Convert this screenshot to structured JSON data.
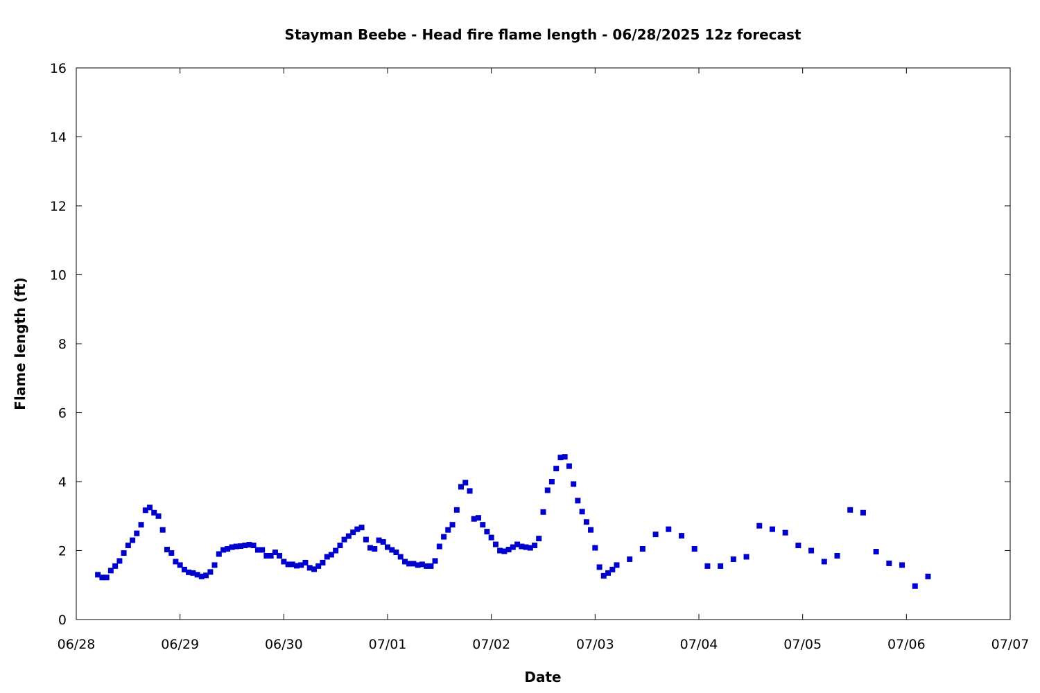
{
  "chart_data": {
    "type": "scatter",
    "title": "Stayman Beebe - Head fire flame length - 06/28/2025 12z forecast",
    "xlabel": "Date",
    "ylabel": "Flame length (ft)",
    "x_unit": "days since 06/28 00:00",
    "xlim": [
      0,
      9
    ],
    "ylim": [
      0,
      16
    ],
    "x_ticks": [
      "06/28",
      "06/29",
      "06/30",
      "07/01",
      "07/02",
      "07/03",
      "07/04",
      "07/05",
      "07/06",
      "07/07"
    ],
    "y_ticks": [
      "0",
      "2",
      "4",
      "6",
      "8",
      "10",
      "12",
      "14",
      "16"
    ],
    "grid": false,
    "legend": "none",
    "marker_color": "#0000cc",
    "series": [
      {
        "points": [
          [
            0.208,
            1.3
          ],
          [
            0.25,
            1.22
          ],
          [
            0.292,
            1.22
          ],
          [
            0.333,
            1.42
          ],
          [
            0.375,
            1.55
          ],
          [
            0.417,
            1.7
          ],
          [
            0.458,
            1.93
          ],
          [
            0.5,
            2.15
          ],
          [
            0.542,
            2.3
          ],
          [
            0.583,
            2.5
          ],
          [
            0.625,
            2.75
          ],
          [
            0.667,
            3.17
          ],
          [
            0.708,
            3.25
          ],
          [
            0.75,
            3.1
          ],
          [
            0.792,
            3.0
          ],
          [
            0.833,
            2.6
          ],
          [
            0.875,
            2.03
          ],
          [
            0.917,
            1.93
          ],
          [
            0.958,
            1.68
          ],
          [
            1.0,
            1.58
          ],
          [
            1.042,
            1.45
          ],
          [
            1.083,
            1.37
          ],
          [
            1.125,
            1.35
          ],
          [
            1.167,
            1.3
          ],
          [
            1.208,
            1.25
          ],
          [
            1.25,
            1.28
          ],
          [
            1.292,
            1.38
          ],
          [
            1.333,
            1.58
          ],
          [
            1.375,
            1.9
          ],
          [
            1.417,
            2.02
          ],
          [
            1.458,
            2.05
          ],
          [
            1.5,
            2.1
          ],
          [
            1.542,
            2.12
          ],
          [
            1.583,
            2.13
          ],
          [
            1.625,
            2.15
          ],
          [
            1.667,
            2.17
          ],
          [
            1.708,
            2.15
          ],
          [
            1.75,
            2.02
          ],
          [
            1.792,
            2.02
          ],
          [
            1.833,
            1.85
          ],
          [
            1.875,
            1.85
          ],
          [
            1.917,
            1.95
          ],
          [
            1.958,
            1.85
          ],
          [
            2.0,
            1.68
          ],
          [
            2.042,
            1.6
          ],
          [
            2.083,
            1.6
          ],
          [
            2.125,
            1.56
          ],
          [
            2.167,
            1.58
          ],
          [
            2.208,
            1.65
          ],
          [
            2.25,
            1.5
          ],
          [
            2.292,
            1.46
          ],
          [
            2.333,
            1.55
          ],
          [
            2.375,
            1.65
          ],
          [
            2.417,
            1.82
          ],
          [
            2.458,
            1.88
          ],
          [
            2.5,
            2.0
          ],
          [
            2.542,
            2.15
          ],
          [
            2.583,
            2.32
          ],
          [
            2.625,
            2.42
          ],
          [
            2.667,
            2.53
          ],
          [
            2.708,
            2.62
          ],
          [
            2.75,
            2.67
          ],
          [
            2.792,
            2.32
          ],
          [
            2.833,
            2.08
          ],
          [
            2.875,
            2.05
          ],
          [
            2.917,
            2.3
          ],
          [
            2.958,
            2.25
          ],
          [
            3.0,
            2.1
          ],
          [
            3.042,
            2.02
          ],
          [
            3.083,
            1.95
          ],
          [
            3.125,
            1.82
          ],
          [
            3.167,
            1.68
          ],
          [
            3.208,
            1.62
          ],
          [
            3.25,
            1.62
          ],
          [
            3.292,
            1.58
          ],
          [
            3.333,
            1.6
          ],
          [
            3.375,
            1.55
          ],
          [
            3.417,
            1.55
          ],
          [
            3.458,
            1.7
          ],
          [
            3.5,
            2.12
          ],
          [
            3.542,
            2.4
          ],
          [
            3.583,
            2.6
          ],
          [
            3.625,
            2.75
          ],
          [
            3.667,
            3.18
          ],
          [
            3.708,
            3.85
          ],
          [
            3.75,
            3.97
          ],
          [
            3.792,
            3.73
          ],
          [
            3.833,
            2.92
          ],
          [
            3.875,
            2.95
          ],
          [
            3.917,
            2.75
          ],
          [
            3.958,
            2.55
          ],
          [
            4.0,
            2.38
          ],
          [
            4.042,
            2.18
          ],
          [
            4.083,
            2.0
          ],
          [
            4.125,
            1.98
          ],
          [
            4.167,
            2.03
          ],
          [
            4.208,
            2.1
          ],
          [
            4.25,
            2.18
          ],
          [
            4.292,
            2.12
          ],
          [
            4.333,
            2.1
          ],
          [
            4.375,
            2.08
          ],
          [
            4.417,
            2.15
          ],
          [
            4.458,
            2.35
          ],
          [
            4.5,
            3.12
          ],
          [
            4.542,
            3.75
          ],
          [
            4.583,
            4.0
          ],
          [
            4.625,
            4.38
          ],
          [
            4.667,
            4.7
          ],
          [
            4.708,
            4.72
          ],
          [
            4.75,
            4.45
          ],
          [
            4.792,
            3.93
          ],
          [
            4.833,
            3.45
          ],
          [
            4.875,
            3.13
          ],
          [
            4.917,
            2.83
          ],
          [
            4.958,
            2.6
          ],
          [
            5.0,
            2.08
          ],
          [
            5.042,
            1.52
          ],
          [
            5.083,
            1.27
          ],
          [
            5.125,
            1.35
          ],
          [
            5.167,
            1.45
          ],
          [
            5.208,
            1.58
          ],
          [
            5.333,
            1.75
          ],
          [
            5.458,
            2.05
          ],
          [
            5.583,
            2.47
          ],
          [
            5.708,
            2.62
          ],
          [
            5.833,
            2.43
          ],
          [
            5.958,
            2.05
          ],
          [
            6.083,
            1.55
          ],
          [
            6.208,
            1.55
          ],
          [
            6.333,
            1.75
          ],
          [
            6.458,
            1.82
          ],
          [
            6.583,
            2.72
          ],
          [
            6.708,
            2.62
          ],
          [
            6.833,
            2.52
          ],
          [
            6.958,
            2.15
          ],
          [
            7.083,
            2.0
          ],
          [
            7.208,
            1.68
          ],
          [
            7.333,
            1.85
          ],
          [
            7.458,
            3.18
          ],
          [
            7.583,
            3.1
          ],
          [
            7.708,
            1.97
          ],
          [
            7.833,
            1.63
          ],
          [
            7.958,
            1.58
          ],
          [
            8.083,
            0.97
          ],
          [
            8.208,
            1.25
          ]
        ]
      }
    ]
  }
}
